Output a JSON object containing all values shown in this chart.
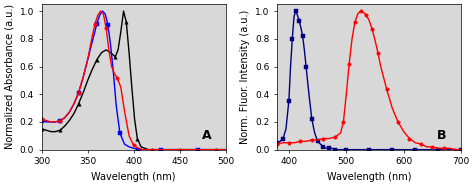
{
  "panel_A": {
    "xlabel": "Wavelength (nm)",
    "ylabel": "Normalized Absorbance (a.u.)",
    "xlim": [
      300,
      500
    ],
    "ylim": [
      0,
      1.05
    ],
    "label": "A",
    "black_line": {
      "x": [
        300,
        305,
        310,
        315,
        320,
        325,
        330,
        335,
        340,
        345,
        350,
        355,
        360,
        365,
        370,
        375,
        380,
        383,
        386,
        389,
        392,
        395,
        398,
        401,
        404,
        408,
        412,
        416,
        420,
        425,
        430,
        440,
        450,
        460,
        470,
        480,
        490,
        500
      ],
      "y": [
        0.15,
        0.14,
        0.13,
        0.13,
        0.14,
        0.17,
        0.21,
        0.26,
        0.33,
        0.41,
        0.5,
        0.58,
        0.65,
        0.7,
        0.72,
        0.7,
        0.67,
        0.72,
        0.85,
        1.0,
        0.92,
        0.7,
        0.45,
        0.22,
        0.08,
        0.02,
        0.01,
        0.0,
        0.0,
        0.0,
        0.0,
        0.0,
        0.0,
        0.0,
        0.0,
        0.0,
        0.0,
        0.0
      ],
      "color": "black",
      "marker": "^",
      "markersize": 2.5,
      "markevery": 4
    },
    "blue_line": {
      "x": [
        300,
        305,
        310,
        315,
        320,
        325,
        330,
        335,
        340,
        345,
        350,
        355,
        360,
        363,
        366,
        369,
        372,
        375,
        378,
        381,
        385,
        390,
        395,
        400,
        405,
        410,
        415,
        420,
        430,
        440,
        450,
        460,
        470,
        480,
        490,
        500
      ],
      "y": [
        0.21,
        0.2,
        0.2,
        0.2,
        0.21,
        0.23,
        0.27,
        0.33,
        0.41,
        0.52,
        0.65,
        0.78,
        0.91,
        0.97,
        1.0,
        0.98,
        0.9,
        0.75,
        0.55,
        0.32,
        0.12,
        0.04,
        0.02,
        0.01,
        0.0,
        0.0,
        0.0,
        0.0,
        0.0,
        0.0,
        0.0,
        0.0,
        0.0,
        0.0,
        0.0,
        0.0
      ],
      "color": "blue",
      "marker": "s",
      "markersize": 2.5,
      "markevery": 4
    },
    "red_line": {
      "x": [
        300,
        305,
        310,
        315,
        320,
        325,
        330,
        335,
        340,
        345,
        350,
        355,
        358,
        361,
        364,
        367,
        370,
        373,
        376,
        379,
        382,
        386,
        390,
        395,
        400,
        405,
        410,
        415,
        420,
        425,
        430,
        440,
        450,
        460,
        470,
        480,
        490,
        500
      ],
      "y": [
        0.22,
        0.21,
        0.2,
        0.2,
        0.21,
        0.23,
        0.27,
        0.33,
        0.41,
        0.52,
        0.65,
        0.82,
        0.91,
        0.97,
        1.0,
        0.98,
        0.88,
        0.72,
        0.6,
        0.55,
        0.52,
        0.45,
        0.28,
        0.1,
        0.03,
        0.01,
        0.0,
        0.0,
        0.0,
        0.0,
        0.0,
        0.0,
        0.0,
        0.0,
        0.0,
        0.0,
        0.0,
        0.0
      ],
      "color": "red",
      "marker": "o",
      "markersize": 2.5,
      "markevery": 4
    }
  },
  "panel_B": {
    "xlabel": "Wavelength (nm)",
    "ylabel": "Norm. Fluor. Intensity (a.u.)",
    "xlim": [
      380,
      700
    ],
    "ylim": [
      0,
      1.05
    ],
    "label": "B",
    "blue_line": {
      "x": [
        380,
        385,
        390,
        395,
        400,
        403,
        406,
        409,
        412,
        415,
        418,
        421,
        424,
        427,
        430,
        435,
        440,
        445,
        450,
        455,
        460,
        465,
        470,
        475,
        480,
        490,
        500,
        520,
        540,
        560,
        580,
        600,
        620,
        640,
        660,
        680,
        700
      ],
      "y": [
        0.05,
        0.06,
        0.08,
        0.15,
        0.35,
        0.6,
        0.8,
        0.96,
        1.0,
        0.97,
        0.93,
        0.88,
        0.82,
        0.72,
        0.6,
        0.4,
        0.22,
        0.12,
        0.06,
        0.04,
        0.02,
        0.01,
        0.01,
        0.01,
        0.0,
        0.0,
        0.0,
        0.0,
        0.0,
        0.0,
        0.0,
        0.0,
        0.0,
        0.0,
        0.0,
        0.0,
        0.0
      ],
      "color": "navy",
      "marker": "s",
      "markersize": 2.5,
      "markevery": 2
    },
    "red_line": {
      "x": [
        380,
        390,
        400,
        410,
        420,
        430,
        440,
        450,
        460,
        470,
        480,
        490,
        495,
        500,
        505,
        510,
        515,
        520,
        525,
        530,
        535,
        540,
        545,
        550,
        555,
        560,
        570,
        580,
        590,
        600,
        610,
        620,
        630,
        640,
        650,
        660,
        670,
        680,
        690,
        700
      ],
      "y": [
        0.04,
        0.05,
        0.05,
        0.05,
        0.06,
        0.06,
        0.07,
        0.07,
        0.08,
        0.08,
        0.09,
        0.12,
        0.2,
        0.4,
        0.62,
        0.8,
        0.92,
        0.98,
        1.0,
        0.99,
        0.97,
        0.93,
        0.87,
        0.79,
        0.7,
        0.6,
        0.44,
        0.3,
        0.2,
        0.13,
        0.08,
        0.05,
        0.04,
        0.02,
        0.02,
        0.01,
        0.01,
        0.01,
        0.0,
        0.0
      ],
      "color": "red",
      "marker": "o",
      "markersize": 2.5,
      "markevery": 2
    }
  },
  "bg_color": "#d8d8d8",
  "tick_fontsize": 6.5,
  "label_fontsize": 7,
  "axis_label_fontsize": 7
}
